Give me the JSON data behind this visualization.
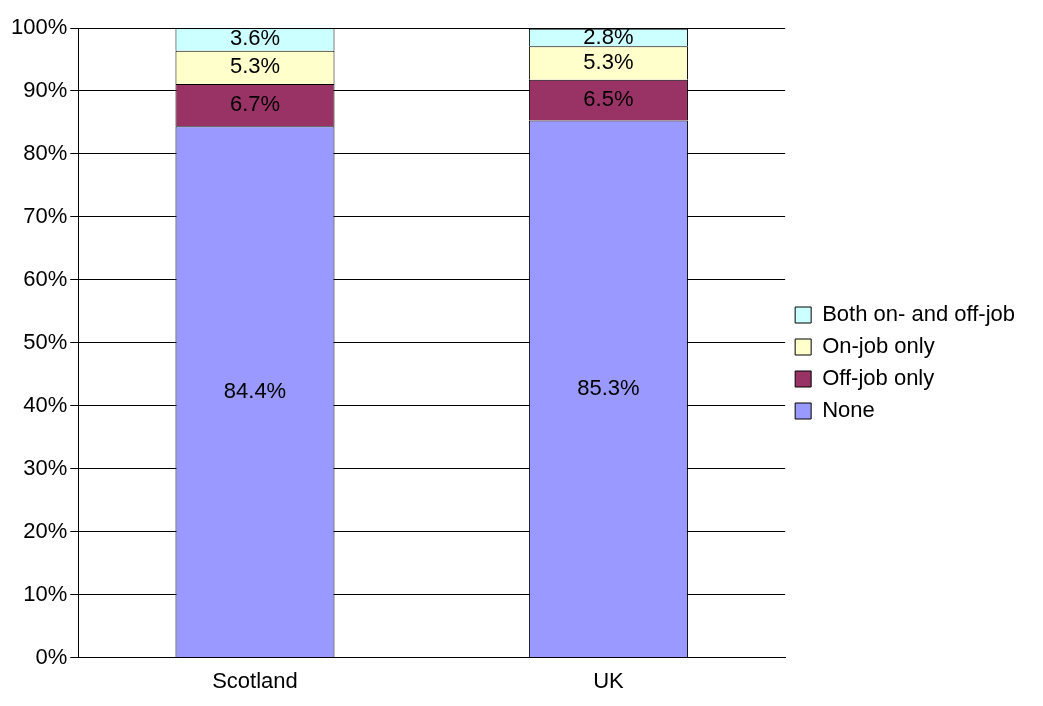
{
  "chart_data": {
    "type": "bar",
    "stacked": true,
    "categories": [
      "Scotland",
      "UK"
    ],
    "series": [
      {
        "name": "None",
        "color": "#9999ff",
        "values": [
          84.4,
          85.3
        ],
        "value_labels": [
          "84.4%",
          "85.3%"
        ]
      },
      {
        "name": "Off-job only",
        "color": "#993366",
        "values": [
          6.7,
          6.5
        ],
        "value_labels": [
          "6.7%",
          "6.5%"
        ]
      },
      {
        "name": "On-job only",
        "color": "#ffffcc",
        "values": [
          5.3,
          5.3
        ],
        "value_labels": [
          "5.3%",
          "5.3%"
        ]
      },
      {
        "name": "Both on- and off-job",
        "color": "#ccffff",
        "values": [
          3.6,
          2.8
        ],
        "value_labels": [
          "3.6%",
          "2.8%"
        ]
      }
    ],
    "ylim": [
      0,
      100
    ],
    "yticks": [
      {
        "value": 0,
        "label": "0%"
      },
      {
        "value": 10,
        "label": "10%"
      },
      {
        "value": 20,
        "label": "20%"
      },
      {
        "value": 30,
        "label": "30%"
      },
      {
        "value": 40,
        "label": "40%"
      },
      {
        "value": 50,
        "label": "50%"
      },
      {
        "value": 60,
        "label": "60%"
      },
      {
        "value": 70,
        "label": "70%"
      },
      {
        "value": 80,
        "label": "80%"
      },
      {
        "value": 90,
        "label": "90%"
      },
      {
        "value": 100,
        "label": "100%"
      }
    ],
    "grid": "y",
    "legend": "right"
  }
}
